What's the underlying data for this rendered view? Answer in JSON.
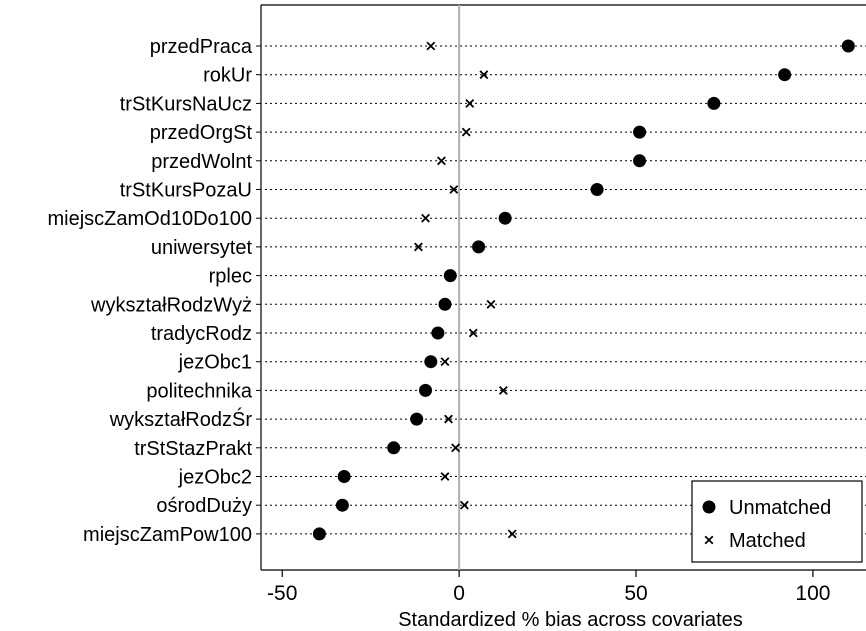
{
  "chart_data": {
    "type": "scatter",
    "xlabel": "Standardized % bias across covariates",
    "xlim": [
      -56,
      115
    ],
    "xticks": [
      -50,
      0,
      50,
      100
    ],
    "reference_line": 0,
    "grid": "dotted horizontal guide per covariate",
    "legend_position": "bottom-right",
    "categories": [
      "przedPraca",
      "rokUr",
      "trStKursNaUcz",
      "przedOrgSt",
      "przedWolnt",
      "trStKursPozaU",
      "miejscZamOd10Do100",
      "uniwersytet",
      "rplec",
      "wykształRodzWyż",
      "tradycRodz",
      "jezObc1",
      "politechnika",
      "wykształRodzŚr",
      "trStStazPrakt",
      "jezObc2",
      "ośrodDuży",
      "miejscZamPow100"
    ],
    "series": [
      {
        "name": "Unmatched",
        "marker": "filled-circle",
        "values": [
          110,
          92,
          72,
          51,
          51,
          39,
          13,
          5.5,
          -2.5,
          -4,
          -6,
          -8,
          -9.5,
          -12,
          -18.5,
          -32.5,
          -33,
          -39.5
        ]
      },
      {
        "name": "Matched",
        "marker": "x-cross",
        "values": [
          -8,
          7,
          3,
          2,
          -5,
          -1.5,
          -9.5,
          -11.5,
          null,
          9,
          4,
          -4,
          12.5,
          -3,
          -1,
          -4,
          1.5,
          15
        ]
      }
    ]
  }
}
